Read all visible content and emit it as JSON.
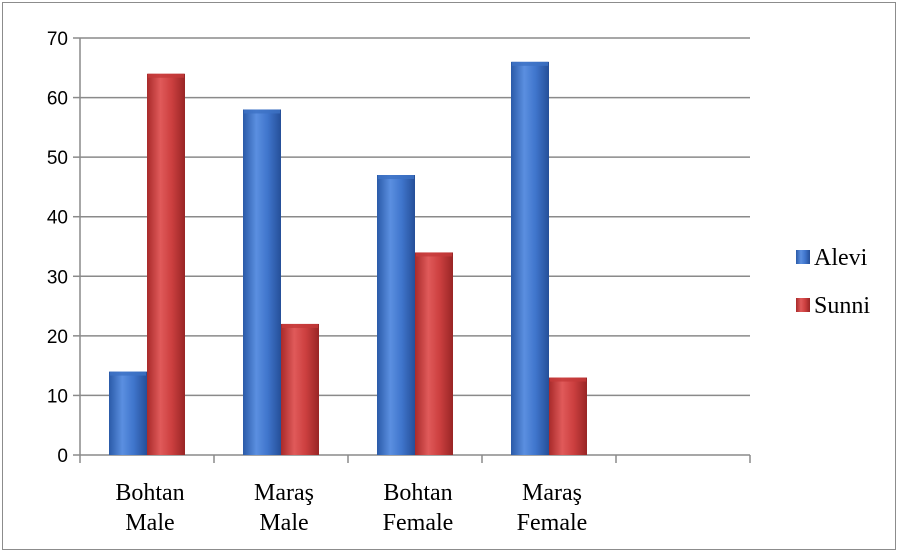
{
  "chart_data": {
    "type": "bar",
    "title": "",
    "xlabel": "",
    "ylabel": "",
    "categories": [
      [
        "Bohtan",
        "Male"
      ],
      [
        "Maraş",
        "Male"
      ],
      [
        "Bohtan",
        "Female"
      ],
      [
        "Maraş",
        "Female"
      ]
    ],
    "series": [
      {
        "name": "Alevi",
        "color": "#3d72c4",
        "values": [
          14,
          58,
          47,
          66
        ]
      },
      {
        "name": "Sunni",
        "color": "#c43a3a",
        "values": [
          64,
          22,
          34,
          13
        ]
      }
    ],
    "ylim": [
      0,
      70
    ],
    "yticks": [
      0,
      10,
      20,
      30,
      40,
      50,
      60,
      70
    ],
    "grid": true,
    "legend": "right"
  }
}
